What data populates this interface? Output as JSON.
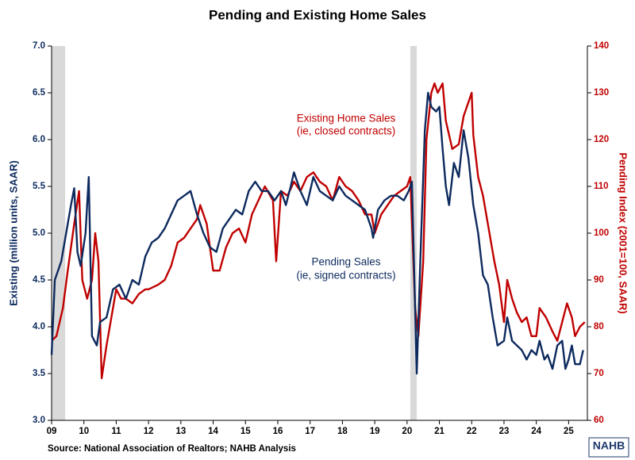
{
  "chart_data": {
    "type": "line",
    "title": "Pending and Existing Home Sales",
    "y_label": "Existing (million units, SAAR)",
    "y2_label": "Pending Index (2001=100, SAAR)",
    "y_label_color": "#0d2a5e",
    "y2_label_color": "#c00000",
    "source": "Source: National Association of Realtors; NAHB Analysis",
    "logo": "NAHB",
    "annotations": [
      {
        "lines": [
          "Existing Home Sales",
          "(ie, closed contracts)"
        ],
        "color": "#c00000"
      },
      {
        "lines": [
          "Pending Sales",
          "(ie, signed contracts)"
        ],
        "color": "#0d2a5e"
      }
    ],
    "xlim": [
      2009,
      2025.58
    ],
    "xticks": [
      {
        "value": 2009,
        "label": "09"
      },
      {
        "value": 2010,
        "label": "10"
      },
      {
        "value": 2011,
        "label": "11"
      },
      {
        "value": 2012,
        "label": "12"
      },
      {
        "value": 2013,
        "label": "13"
      },
      {
        "value": 2014,
        "label": "14"
      },
      {
        "value": 2015,
        "label": "15"
      },
      {
        "value": 2016,
        "label": "16"
      },
      {
        "value": 2017,
        "label": "17"
      },
      {
        "value": 2018,
        "label": "18"
      },
      {
        "value": 2019,
        "label": "19"
      },
      {
        "value": 2020,
        "label": "20"
      },
      {
        "value": 2021,
        "label": "21"
      },
      {
        "value": 2022,
        "label": "22"
      },
      {
        "value": 2023,
        "label": "23"
      },
      {
        "value": 2024,
        "label": "24"
      },
      {
        "value": 2025,
        "label": "25"
      }
    ],
    "ylim": [
      3,
      7
    ],
    "yticks": [
      {
        "value": 3,
        "label": "3.0"
      },
      {
        "value": 3.5,
        "label": "3.5"
      },
      {
        "value": 4,
        "label": "4.0"
      },
      {
        "value": 4.5,
        "label": "4.5"
      },
      {
        "value": 5,
        "label": "5.0"
      },
      {
        "value": 5.5,
        "label": "5.5"
      },
      {
        "value": 6,
        "label": "6.0"
      },
      {
        "value": 6.5,
        "label": "6.5"
      },
      {
        "value": 7,
        "label": "7.0"
      }
    ],
    "y2lim": [
      60,
      140
    ],
    "y2ticks": [
      60,
      70,
      80,
      90,
      100,
      110,
      120,
      130,
      140
    ],
    "recessions": [
      [
        2009,
        2009.42
      ],
      [
        2020.1,
        2020.3
      ]
    ],
    "recession_color": "#d9d9d9",
    "series": [
      {
        "name": "Existing Home Sales",
        "color": "#c00000",
        "x": [
          2009.0,
          2009.15,
          2009.35,
          2009.5,
          2009.7,
          2009.85,
          2009.95,
          2010.1,
          2010.25,
          2010.35,
          2010.45,
          2010.55,
          2010.7,
          2010.85,
          2011.0,
          2011.15,
          2011.3,
          2011.5,
          2011.7,
          2011.9,
          2012.0,
          2012.3,
          2012.5,
          2012.7,
          2012.9,
          2013.1,
          2013.3,
          2013.5,
          2013.6,
          2013.8,
          2014.0,
          2014.2,
          2014.4,
          2014.6,
          2014.8,
          2015.0,
          2015.2,
          2015.4,
          2015.6,
          2015.85,
          2015.95,
          2016.1,
          2016.3,
          2016.5,
          2016.7,
          2016.9,
          2017.1,
          2017.3,
          2017.5,
          2017.7,
          2017.9,
          2018.1,
          2018.3,
          2018.5,
          2018.7,
          2018.9,
          2019.0,
          2019.2,
          2019.4,
          2019.6,
          2019.8,
          2020.0,
          2020.1,
          2020.25,
          2020.35,
          2020.5,
          2020.6,
          2020.75,
          2020.85,
          2020.95,
          2021.1,
          2021.2,
          2021.4,
          2021.6,
          2021.75,
          2021.9,
          2022.0,
          2022.05,
          2022.2,
          2022.35,
          2022.5,
          2022.7,
          2022.85,
          2023.0,
          2023.1,
          2023.25,
          2023.4,
          2023.55,
          2023.7,
          2023.85,
          2024.0,
          2024.1,
          2024.3,
          2024.5,
          2024.65,
          2024.8,
          2024.95,
          2025.1,
          2025.2,
          2025.35,
          2025.5
        ],
        "values": [
          3.85,
          3.9,
          4.2,
          4.6,
          5.1,
          5.45,
          4.5,
          4.3,
          4.5,
          5.0,
          4.7,
          3.45,
          3.8,
          4.1,
          4.4,
          4.3,
          4.3,
          4.25,
          4.35,
          4.4,
          4.4,
          4.45,
          4.5,
          4.65,
          4.9,
          4.95,
          5.05,
          5.15,
          5.3,
          5.1,
          4.6,
          4.6,
          4.85,
          5.0,
          5.05,
          4.9,
          5.2,
          5.35,
          5.5,
          5.35,
          4.7,
          5.45,
          5.4,
          5.55,
          5.45,
          5.6,
          5.65,
          5.55,
          5.5,
          5.35,
          5.6,
          5.5,
          5.45,
          5.35,
          5.2,
          5.2,
          5.0,
          5.2,
          5.3,
          5.4,
          5.45,
          5.5,
          5.6,
          4.2,
          3.9,
          4.7,
          6.0,
          6.5,
          6.6,
          6.5,
          6.6,
          6.2,
          5.9,
          5.95,
          6.25,
          6.4,
          6.5,
          6.05,
          5.6,
          5.4,
          5.1,
          4.7,
          4.45,
          4.05,
          4.5,
          4.3,
          4.15,
          4.05,
          4.1,
          3.9,
          3.9,
          4.2,
          4.1,
          3.95,
          3.85,
          4.05,
          4.25,
          4.1,
          3.9,
          4.0,
          4.05
        ]
      },
      {
        "name": "Pending Sales",
        "color": "#0d2a5e",
        "axis": "y2",
        "x": [
          2009.0,
          2009.1,
          2009.3,
          2009.45,
          2009.6,
          2009.7,
          2009.8,
          2009.9,
          2010.05,
          2010.15,
          2010.25,
          2010.4,
          2010.5,
          2010.7,
          2010.9,
          2011.1,
          2011.3,
          2011.5,
          2011.7,
          2011.9,
          2012.1,
          2012.3,
          2012.5,
          2012.7,
          2012.9,
          2013.1,
          2013.3,
          2013.5,
          2013.7,
          2013.9,
          2014.1,
          2014.3,
          2014.5,
          2014.7,
          2014.9,
          2015.1,
          2015.3,
          2015.5,
          2015.7,
          2015.9,
          2016.1,
          2016.25,
          2016.4,
          2016.5,
          2016.7,
          2016.9,
          2017.1,
          2017.3,
          2017.5,
          2017.7,
          2017.9,
          2018.1,
          2018.3,
          2018.5,
          2018.7,
          2018.9,
          2018.95,
          2019.1,
          2019.3,
          2019.5,
          2019.7,
          2019.9,
          2020.05,
          2020.15,
          2020.3,
          2020.4,
          2020.55,
          2020.65,
          2020.75,
          2020.9,
          2021.0,
          2021.1,
          2021.2,
          2021.3,
          2021.45,
          2021.6,
          2021.75,
          2021.9,
          2022.05,
          2022.2,
          2022.35,
          2022.5,
          2022.65,
          2022.8,
          2023.0,
          2023.1,
          2023.25,
          2023.4,
          2023.55,
          2023.7,
          2023.85,
          2024.0,
          2024.1,
          2024.25,
          2024.35,
          2024.5,
          2024.65,
          2024.8,
          2024.9,
          2025.0,
          2025.1,
          2025.2,
          2025.35,
          2025.45
        ],
        "values": [
          74,
          90,
          94,
          100,
          106,
          109.6,
          96,
          93,
          100,
          112,
          78,
          76,
          81,
          82,
          88,
          89,
          86,
          90,
          89,
          95,
          98,
          99,
          101,
          104,
          107,
          108,
          109,
          104,
          100,
          97,
          96,
          101,
          103,
          105,
          104,
          109,
          111,
          109,
          109,
          107,
          109,
          106,
          110,
          113,
          109,
          106,
          112,
          109,
          108,
          107,
          110,
          108,
          107,
          106,
          105,
          101,
          99,
          105,
          107,
          108,
          108,
          107,
          109,
          111,
          70,
          92,
          122,
          130,
          127,
          126,
          127,
          118,
          110,
          106,
          115,
          112,
          122,
          116,
          106,
          100,
          91,
          89,
          82,
          76,
          77,
          82,
          77,
          76,
          75,
          73,
          75,
          74,
          77,
          73,
          74,
          71,
          76,
          77,
          71,
          73,
          76,
          72,
          72,
          75
        ]
      }
    ]
  }
}
